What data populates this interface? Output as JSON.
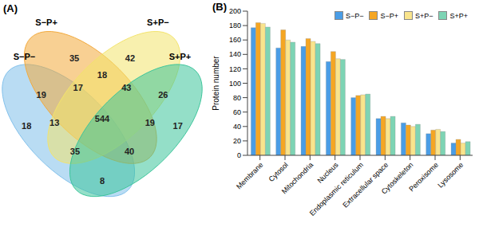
{
  "chart_data": [
    {
      "type": "venn",
      "panel_label": "(A)",
      "sets": [
        {
          "name": "S−P−",
          "color": "#7fbfea"
        },
        {
          "name": "S−P+",
          "color": "#f2a93b"
        },
        {
          "name": "S+P−",
          "color": "#f3e36b"
        },
        {
          "name": "S+P+",
          "color": "#3cc49a"
        }
      ],
      "regions": [
        {
          "sets": [
            "S−P−"
          ],
          "value": 18
        },
        {
          "sets": [
            "S−P+"
          ],
          "value": 35
        },
        {
          "sets": [
            "S+P−"
          ],
          "value": 42
        },
        {
          "sets": [
            "S+P+"
          ],
          "value": 17
        },
        {
          "sets": [
            "S−P−",
            "S−P+"
          ],
          "value": 19
        },
        {
          "sets": [
            "S−P+",
            "S+P−"
          ],
          "value": 18
        },
        {
          "sets": [
            "S+P−",
            "S+P+"
          ],
          "value": 26
        },
        {
          "sets": [
            "S−P−",
            "S+P+"
          ],
          "value": 8
        },
        {
          "sets": [
            "S−P−",
            "S+P−"
          ],
          "value": 13
        },
        {
          "sets": [
            "S−P+",
            "S+P+"
          ],
          "value": 19
        },
        {
          "sets": [
            "S−P−",
            "S−P+",
            "S+P−"
          ],
          "value": 17
        },
        {
          "sets": [
            "S−P+",
            "S+P−",
            "S+P+"
          ],
          "value": 43
        },
        {
          "sets": [
            "S−P−",
            "S+P−",
            "S+P+"
          ],
          "value": 35
        },
        {
          "sets": [
            "S−P−",
            "S−P+",
            "S+P+"
          ],
          "value": 40
        },
        {
          "sets": [
            "S−P−",
            "S−P+",
            "S+P−",
            "S+P+"
          ],
          "value": 544
        }
      ]
    },
    {
      "type": "bar",
      "panel_label": "(B)",
      "y_label": "Protein number",
      "categories": [
        "Membrane",
        "Cytosol",
        "Mitochondria",
        "Nucleus",
        "Endoplasmic reticulum",
        "Extracellular space",
        "Cytoskeleton",
        "Peroxisome",
        "Lysosome"
      ],
      "series": [
        {
          "name": "S−P−",
          "color": "#4a9de6",
          "values": [
            177,
            149,
            151,
            130,
            80,
            51,
            45,
            30,
            17
          ]
        },
        {
          "name": "S−P+",
          "color": "#f5a623",
          "values": [
            184,
            174,
            162,
            144,
            83,
            54,
            42,
            35,
            22
          ]
        },
        {
          "name": "S+P−",
          "color": "#f9e48c",
          "values": [
            183,
            160,
            158,
            134,
            84,
            51,
            40,
            36,
            17
          ]
        },
        {
          "name": "S+P+",
          "color": "#7dd4b4",
          "values": [
            178,
            157,
            155,
            133,
            85,
            54,
            43,
            33,
            19
          ]
        }
      ],
      "ylim": [
        0,
        200
      ],
      "yticks": [
        0,
        20,
        40,
        60,
        80,
        100,
        120,
        140,
        160,
        180,
        200
      ],
      "grid": false,
      "legend": "upper right"
    }
  ]
}
